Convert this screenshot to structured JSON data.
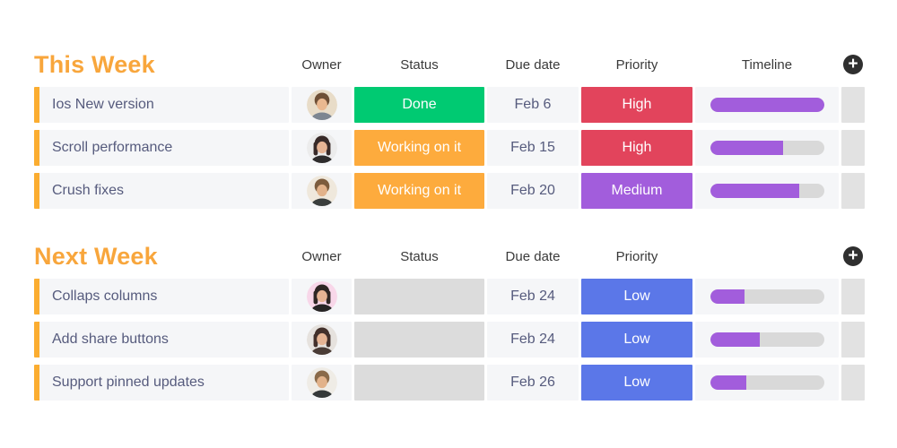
{
  "colors": {
    "title_orange": "#f8a63c",
    "row_bar_orange": "#fbad31",
    "row_bg": "#f5f6f8",
    "empty_cell": "#dcdcdc",
    "add_cell": "#e2e2e2",
    "track": "#d9d9d9",
    "timeline_fill": "#a25ddc",
    "header_text": "#3a3a3a",
    "body_text": "#565b7d",
    "status_done": "#00ca72",
    "status_working": "#fdab3d",
    "priority_high": "#e2445c",
    "priority_medium": "#a25ddc",
    "priority_low": "#5b77e8",
    "plus_bg": "#2f2f2f"
  },
  "plus_glyph": "+",
  "groups": [
    {
      "title": "This Week",
      "columns": {
        "owner": "Owner",
        "status": "Status",
        "due": "Due date",
        "priority": "Priority",
        "timeline": "Timeline"
      },
      "rows": [
        {
          "task": "Ios New version",
          "avatar": {
            "desc": "man-short-brown-hair",
            "bg": "#e8dcc8",
            "hair": "#6e4f36",
            "skin": "#eab890",
            "shirt": "#7d8691",
            "long_hair": false
          },
          "status": {
            "label": "Done",
            "bg": "#00ca72"
          },
          "due": "Feb 6",
          "priority": {
            "label": "High",
            "bg": "#e2445c"
          },
          "timeline_percent": 100
        },
        {
          "task": "Scroll performance",
          "avatar": {
            "desc": "woman-dark-hair",
            "bg": "#ececec",
            "hair": "#382a28",
            "skin": "#e6b494",
            "shirt": "#2e2c2c",
            "long_hair": true
          },
          "status": {
            "label": "Working on it",
            "bg": "#fdab3d"
          },
          "due": "Feb 15",
          "priority": {
            "label": "High",
            "bg": "#e2445c"
          },
          "timeline_percent": 64
        },
        {
          "task": "Crush fixes",
          "avatar": {
            "desc": "man-beard",
            "bg": "#efe8dc",
            "hair": "#7c5c3d",
            "skin": "#e2b28a",
            "shirt": "#3a3e3d",
            "long_hair": false
          },
          "status": {
            "label": "Working on it",
            "bg": "#fdab3d"
          },
          "due": "Feb 20",
          "priority": {
            "label": "Medium",
            "bg": "#a25ddc"
          },
          "timeline_percent": 78
        }
      ]
    },
    {
      "title": "Next Week",
      "columns": {
        "owner": "Owner",
        "status": "Status",
        "due": "Due date",
        "priority": "Priority",
        "timeline": ""
      },
      "rows": [
        {
          "task": "Collaps columns",
          "avatar": {
            "desc": "woman-pink-background",
            "bg": "#f8d7e9",
            "hair": "#2f2724",
            "skin": "#e6b494",
            "shirt": "#272525",
            "long_hair": true
          },
          "status": null,
          "due": "Feb 24",
          "priority": {
            "label": "Low",
            "bg": "#5b77e8"
          },
          "timeline_percent": 30
        },
        {
          "task": "Add share buttons",
          "avatar": {
            "desc": "woman-long-dark-hair",
            "bg": "#e6e2de",
            "hair": "#43302b",
            "skin": "#e6b494",
            "shirt": "#4a3c36",
            "long_hair": true
          },
          "status": null,
          "due": "Feb 24",
          "priority": {
            "label": "Low",
            "bg": "#5b77e8"
          },
          "timeline_percent": 44
        },
        {
          "task": "Support pinned updates",
          "avatar": {
            "desc": "man-beard",
            "bg": "#efece6",
            "hair": "#8a6a49",
            "skin": "#e2b28a",
            "shirt": "#35393a",
            "long_hair": false
          },
          "status": null,
          "due": "Feb 26",
          "priority": {
            "label": "Low",
            "bg": "#5b77e8"
          },
          "timeline_percent": 32
        }
      ]
    }
  ]
}
